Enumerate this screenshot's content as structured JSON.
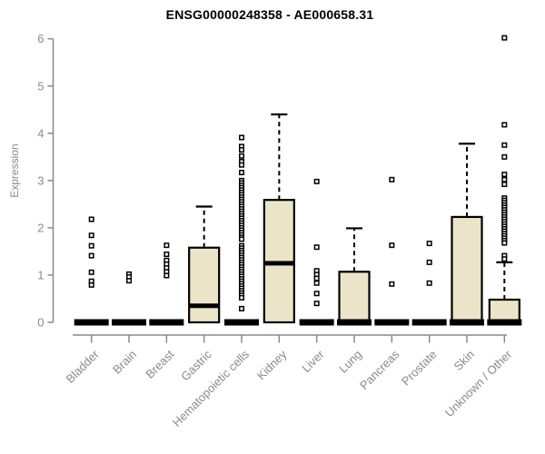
{
  "chart_data": {
    "type": "boxplot",
    "title": "ENSG00000248358 - AE000658.31",
    "ylabel": "Expression",
    "xlabel": "",
    "ylim": [
      0,
      6
    ],
    "yticks": [
      0,
      1,
      2,
      3,
      4,
      5,
      6
    ],
    "grid": false,
    "legend": false,
    "colors": {
      "box_fill": "#ece4c9",
      "box_stroke": "#000000",
      "median": "#000000",
      "whisker": "#000000",
      "outlier_fill": "#ffffff",
      "outlier_stroke": "#000000",
      "axis": "#8a8a8a",
      "tick_label": "#8a8a8a",
      "title": "#000000"
    },
    "categories": [
      "Bladder",
      "Brain",
      "Breast",
      "Gastric",
      "Hematopoietic cells",
      "Kidney",
      "Liver",
      "Lung",
      "Pancreas",
      "Prostate",
      "Skin",
      "Unknown / Other"
    ],
    "series": [
      {
        "category": "Bladder",
        "q1": 0,
        "median": 0,
        "q3": 0,
        "whisker_low": 0,
        "whisker_high": 0,
        "outliers": [
          2.18,
          1.84,
          1.62,
          1.41,
          1.06,
          0.87,
          0.79
        ]
      },
      {
        "category": "Brain",
        "q1": 0,
        "median": 0,
        "q3": 0,
        "whisker_low": 0,
        "whisker_high": 0,
        "outliers": [
          1.02,
          0.96,
          0.88
        ]
      },
      {
        "category": "Breast",
        "q1": 0,
        "median": 0,
        "q3": 0,
        "whisker_low": 0,
        "whisker_high": 0,
        "outliers": [
          1.63,
          1.44,
          1.31,
          1.23,
          1.15,
          1.07,
          0.99
        ]
      },
      {
        "category": "Gastric",
        "q1": 0,
        "median": 0.35,
        "q3": 1.58,
        "whisker_low": 0,
        "whisker_high": 2.45,
        "outliers": []
      },
      {
        "category": "Hematopoietic cells",
        "q1": 0,
        "median": 0,
        "q3": 0,
        "whisker_low": 0,
        "whisker_high": 0,
        "outliers": [
          3.91,
          3.72,
          3.65,
          3.52,
          3.4,
          3.33,
          3.17,
          3.0,
          2.95,
          2.9,
          2.85,
          2.8,
          2.75,
          2.7,
          2.65,
          2.6,
          2.55,
          2.5,
          2.45,
          2.4,
          2.35,
          2.3,
          2.25,
          2.2,
          2.15,
          2.1,
          2.05,
          2.0,
          1.95,
          1.9,
          1.85,
          1.8,
          1.76,
          1.62,
          1.57,
          1.52,
          1.47,
          1.42,
          1.37,
          1.32,
          1.27,
          1.22,
          1.17,
          1.12,
          1.07,
          1.02,
          0.97,
          0.92,
          0.87,
          0.82,
          0.77,
          0.72,
          0.67,
          0.62,
          0.57,
          0.52,
          0.29
        ]
      },
      {
        "category": "Kidney",
        "q1": 0,
        "median": 1.25,
        "q3": 2.59,
        "whisker_low": 0,
        "whisker_high": 4.4,
        "outliers": []
      },
      {
        "category": "Liver",
        "q1": 0,
        "median": 0,
        "q3": 0,
        "whisker_low": 0,
        "whisker_high": 0,
        "outliers": [
          2.98,
          1.59,
          1.09,
          1.01,
          0.93,
          0.83,
          0.61,
          0.4
        ]
      },
      {
        "category": "Lung",
        "q1": 0,
        "median": 0,
        "q3": 1.07,
        "whisker_low": 0,
        "whisker_high": 1.99,
        "outliers": []
      },
      {
        "category": "Pancreas",
        "q1": 0,
        "median": 0,
        "q3": 0,
        "whisker_low": 0,
        "whisker_high": 0,
        "outliers": [
          3.02,
          1.63,
          0.81
        ]
      },
      {
        "category": "Prostate",
        "q1": 0,
        "median": 0,
        "q3": 0,
        "whisker_low": 0,
        "whisker_high": 0,
        "outliers": [
          1.67,
          1.27,
          0.83
        ]
      },
      {
        "category": "Skin",
        "q1": 0,
        "median": 0,
        "q3": 2.23,
        "whisker_low": 0,
        "whisker_high": 3.78,
        "outliers": []
      },
      {
        "category": "Unknown / Other",
        "q1": 0,
        "median": 0,
        "q3": 0.48,
        "whisker_low": 0,
        "whisker_high": 1.27,
        "outliers": [
          6.02,
          4.18,
          3.75,
          3.5,
          3.13,
          3.02,
          2.92,
          2.63,
          2.58,
          2.53,
          2.48,
          2.43,
          2.38,
          2.33,
          2.28,
          2.23,
          2.18,
          2.13,
          2.08,
          2.03,
          1.98,
          1.93,
          1.88,
          1.83,
          1.78,
          1.73,
          1.68,
          1.41,
          1.34
        ]
      }
    ]
  }
}
